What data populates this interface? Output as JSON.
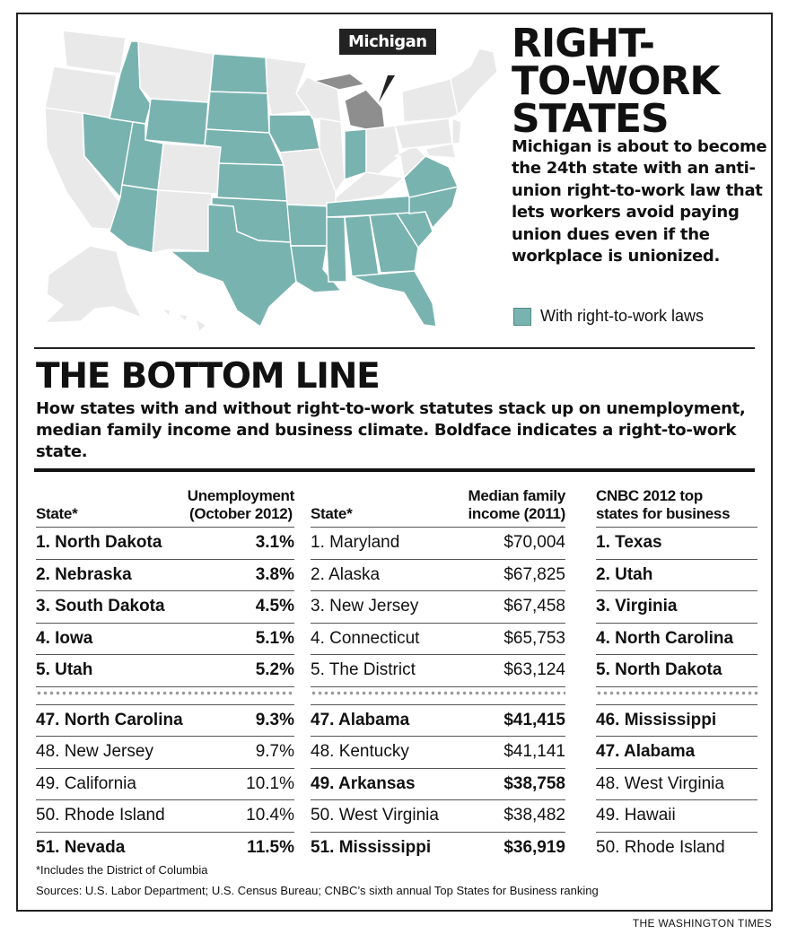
{
  "headline": {
    "line1": "RIGHT-",
    "line2": "TO-WORK",
    "line3": "STATES"
  },
  "deck": "Michigan is about to become the 24th state with an anti-union right-to-work law that lets workers avoid paying union dues even if the workplace is unionized.",
  "callout": "Michigan",
  "legend": {
    "label": "With right-to-work laws",
    "color": "#79b3b0"
  },
  "bottom_line": {
    "title": "THE BOTTOM LINE",
    "deck": "How states with and without right-to-work statutes stack up on unemployment, median family income and business climate. Boldface indicates a right-to-work state."
  },
  "table_unemployment": {
    "header_left": "State*",
    "header_right": [
      "Unemployment",
      "(October 2012)"
    ],
    "top": [
      {
        "state": "1. North Dakota",
        "value": "3.1%",
        "rtw": true
      },
      {
        "state": "2. Nebraska",
        "value": "3.8%",
        "rtw": true
      },
      {
        "state": "3. South Dakota",
        "value": "4.5%",
        "rtw": true
      },
      {
        "state": "4. Iowa",
        "value": "5.1%",
        "rtw": true
      },
      {
        "state": "5. Utah",
        "value": "5.2%",
        "rtw": true
      }
    ],
    "bottom": [
      {
        "state": "47. North Carolina",
        "value": "9.3%",
        "rtw": true
      },
      {
        "state": "48. New Jersey",
        "value": "9.7%",
        "rtw": false
      },
      {
        "state": "49. California",
        "value": "10.1%",
        "rtw": false
      },
      {
        "state": "50. Rhode Island",
        "value": "10.4%",
        "rtw": false
      },
      {
        "state": "51. Nevada",
        "value": "11.5%",
        "rtw": true
      }
    ]
  },
  "table_income": {
    "header_left": "State*",
    "header_right": [
      "Median family",
      "income (2011)"
    ],
    "top": [
      {
        "state": "1. Maryland",
        "value": "$70,004",
        "rtw": false
      },
      {
        "state": "2. Alaska",
        "value": "$67,825",
        "rtw": false
      },
      {
        "state": "3. New Jersey",
        "value": "$67,458",
        "rtw": false
      },
      {
        "state": "4. Connecticut",
        "value": "$65,753",
        "rtw": false
      },
      {
        "state": "5. The District",
        "value": "$63,124",
        "rtw": false
      }
    ],
    "bottom": [
      {
        "state": "47. Alabama",
        "value": "$41,415",
        "rtw": true
      },
      {
        "state": "48. Kentucky",
        "value": "$41,141",
        "rtw": false
      },
      {
        "state": "49. Arkansas",
        "value": "$38,758",
        "rtw": true
      },
      {
        "state": "50. West Virginia",
        "value": "$38,482",
        "rtw": false
      },
      {
        "state": "51. Mississippi",
        "value": "$36,919",
        "rtw": true
      }
    ]
  },
  "table_business": {
    "header": [
      "CNBC 2012 top",
      "states for business"
    ],
    "top": [
      {
        "state": "1. Texas",
        "rtw": true
      },
      {
        "state": "2. Utah",
        "rtw": true
      },
      {
        "state": "3. Virginia",
        "rtw": true
      },
      {
        "state": "4. North Carolina",
        "rtw": true
      },
      {
        "state": "5. North Dakota",
        "rtw": true
      }
    ],
    "bottom": [
      {
        "state": "46. Mississippi",
        "rtw": true
      },
      {
        "state": "47. Alabama",
        "rtw": true
      },
      {
        "state": "48. West Virginia",
        "rtw": false
      },
      {
        "state": "49. Hawaii",
        "rtw": false
      },
      {
        "state": "50. Rhode Island",
        "rtw": false
      }
    ]
  },
  "footnote": "*Includes the District of Columbia",
  "sources": "Sources: U.S. Labor Department; U.S. Census Bureau; CNBC’s sixth annual Top States for Business ranking",
  "credit": "THE WASHINGTON TIMES"
}
